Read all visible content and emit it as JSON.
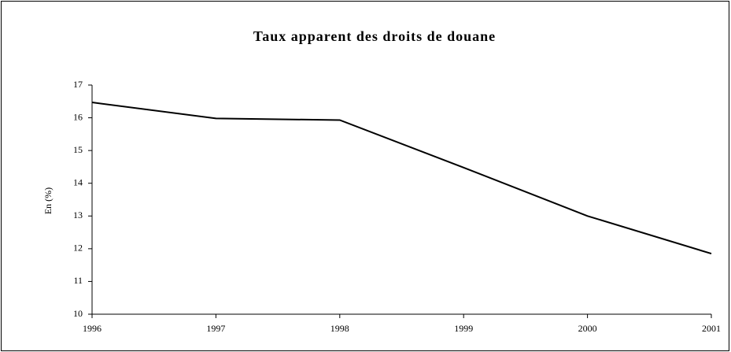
{
  "chart_data": {
    "type": "line",
    "title": "Taux apparent des droits de douane",
    "y_label": "En (%)",
    "x": [
      1996,
      1997,
      1998,
      1999,
      2000,
      2001
    ],
    "series": [
      {
        "color": "#000000",
        "values": [
          16.47,
          15.98,
          15.93,
          14.48,
          13.0,
          11.85
        ]
      }
    ],
    "xlim": [
      1996,
      2001
    ],
    "xticks": [
      1996,
      1997,
      1998,
      1999,
      2000,
      2001
    ],
    "ylim": [
      10,
      17
    ],
    "yticks": [
      10,
      11,
      12,
      13,
      14,
      15,
      16,
      17
    ],
    "grid": false
  }
}
